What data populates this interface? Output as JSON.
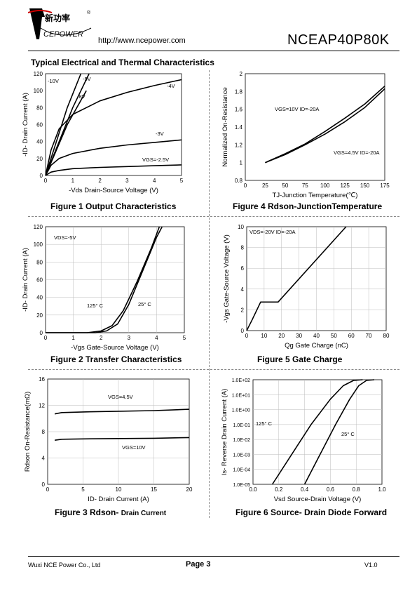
{
  "header": {
    "logo_cn": "新功率",
    "logo_en": "CEPOWER",
    "logo_reg": "®",
    "url": "http://www.ncepower.com",
    "part_number": "NCEAP40P80K"
  },
  "section_title": "Typical Electrical and Thermal Characteristics",
  "chart_data": [
    {
      "id": "fig1",
      "type": "line",
      "caption": "Figure 1 Output Characteristics",
      "xlabel": "-Vds Drain-Source Voltage (V)",
      "ylabel": "-ID- Drain Current (A)",
      "xlim": [
        0,
        5
      ],
      "ylim": [
        0,
        120
      ],
      "xticks": [
        "0",
        "1",
        "2",
        "3",
        "4",
        "5"
      ],
      "yticks": [
        "0",
        "20",
        "40",
        "60",
        "80",
        "100",
        "120"
      ],
      "grid": false,
      "series": [
        {
          "name": "-10V",
          "x": [
            0,
            0.8,
            1.3
          ],
          "y": [
            0,
            80,
            120
          ]
        },
        {
          "name": "-5V",
          "x": [
            0,
            1.0,
            1.6
          ],
          "y": [
            0,
            80,
            120
          ]
        },
        {
          "name": "-8V",
          "x": [
            0,
            0.8,
            1.5
          ],
          "y": [
            0,
            60,
            100
          ]
        },
        {
          "name": "-4V",
          "x": [
            0,
            0.2,
            0.5,
            1,
            2,
            3,
            4,
            5
          ],
          "y": [
            0,
            30,
            55,
            72,
            88,
            98,
            106,
            113
          ]
        },
        {
          "name": "-3V",
          "x": [
            0,
            0.2,
            0.5,
            1,
            2,
            3,
            4,
            5
          ],
          "y": [
            0,
            12,
            20,
            26,
            32,
            36,
            39,
            42
          ]
        },
        {
          "name": "VGS=-2.5V",
          "x": [
            0,
            0.2,
            0.5,
            1,
            2,
            3,
            4,
            5
          ],
          "y": [
            0,
            4,
            6,
            8,
            9.5,
            10.5,
            11.5,
            12.5
          ]
        }
      ],
      "labels": [
        "-10V",
        "-5V",
        "-8V",
        "-4V",
        "-3V",
        "VGS=-2.5V"
      ]
    },
    {
      "id": "fig2",
      "type": "line",
      "caption": "Figure 2 Transfer Characteristics",
      "xlabel": "-Vgs Gate-Source Voltage (V)",
      "ylabel": "-ID- Drain Current (A)",
      "xlim": [
        0,
        5
      ],
      "ylim": [
        0,
        120
      ],
      "xticks": [
        "0",
        "1",
        "2",
        "3",
        "4",
        "5"
      ],
      "yticks": [
        "0",
        "20",
        "40",
        "60",
        "80",
        "100",
        "120"
      ],
      "grid": true,
      "annotation": "VDS=-5V",
      "series": [
        {
          "name": "125° C",
          "x": [
            0,
            1.5,
            2.0,
            2.4,
            2.8,
            3.3,
            3.8,
            4.1
          ],
          "y": [
            0,
            0,
            2,
            8,
            25,
            58,
            95,
            120
          ]
        },
        {
          "name": "25° C",
          "x": [
            0,
            1.8,
            2.2,
            2.6,
            3.0,
            3.5,
            4.0,
            4.2
          ],
          "y": [
            0,
            0,
            2,
            10,
            32,
            70,
            108,
            120
          ]
        }
      ]
    },
    {
      "id": "fig3",
      "type": "line",
      "caption": "Figure 3 Rdson-",
      "caption_small": "Drain Current",
      "xlabel": "ID- Drain Current (A)",
      "ylabel": "Rdson On-Resistance(mΩ)",
      "xlim": [
        0,
        20
      ],
      "ylim": [
        0,
        16
      ],
      "xticks": [
        "0",
        "5",
        "10",
        "15",
        "20"
      ],
      "yticks": [
        "0",
        "4",
        "8",
        "12",
        "16"
      ],
      "grid": true,
      "series": [
        {
          "name": "VGS=4.5V",
          "x": [
            1,
            2,
            5,
            10,
            15,
            20
          ],
          "y": [
            10.7,
            10.9,
            11.0,
            11.1,
            11.2,
            11.4
          ]
        },
        {
          "name": "VGS=10V",
          "x": [
            1,
            2,
            5,
            10,
            15,
            20
          ],
          "y": [
            6.7,
            6.85,
            6.9,
            6.95,
            7.0,
            7.1
          ]
        }
      ]
    },
    {
      "id": "fig4",
      "type": "line",
      "caption": "Figure 4 Rdson-JunctionTemperature",
      "xlabel": "TJ-Junction Temperature(℃)",
      "ylabel": "Normalized On-Resistance",
      "xlim": [
        0,
        175
      ],
      "ylim": [
        0.8,
        2
      ],
      "xticks": [
        "0",
        "25",
        "50",
        "75",
        "100",
        "125",
        "150",
        "175"
      ],
      "yticks": [
        "0.8",
        "1",
        "1.2",
        "1.4",
        "1.6",
        "1.8",
        "2"
      ],
      "grid": false,
      "annotations": [
        "VGS=10V ID=-20A",
        "VGS=4.5V ID=-20A"
      ],
      "series": [
        {
          "name": "VGS=10V",
          "x": [
            25,
            50,
            75,
            100,
            125,
            150,
            175
          ],
          "y": [
            1.0,
            1.1,
            1.21,
            1.35,
            1.5,
            1.66,
            1.86
          ]
        },
        {
          "name": "VGS=4.5V",
          "x": [
            25,
            50,
            75,
            100,
            125,
            150,
            175
          ],
          "y": [
            1.0,
            1.09,
            1.2,
            1.32,
            1.46,
            1.62,
            1.83
          ]
        }
      ]
    },
    {
      "id": "fig5",
      "type": "line",
      "caption": "Figure 5 Gate Charge",
      "xlabel": "Qg Gate Charge (nC)",
      "ylabel": "-Vgs Gate-Source Voltage (V)",
      "xlim": [
        0,
        80
      ],
      "ylim": [
        0,
        10
      ],
      "xticks": [
        "0",
        "10",
        "20",
        "30",
        "40",
        "50",
        "60",
        "70",
        "80"
      ],
      "yticks": [
        "0",
        "2",
        "4",
        "6",
        "8",
        "10"
      ],
      "grid": true,
      "annotation": "VDS=-20V ID=-20A",
      "series": [
        {
          "name": "Vgs",
          "x": [
            0,
            3,
            8,
            18,
            57
          ],
          "y": [
            0,
            1.0,
            2.75,
            2.75,
            10
          ]
        }
      ]
    },
    {
      "id": "fig6",
      "type": "line",
      "caption": "Figure 6 Source- Drain Diode Forward",
      "xlabel": "Vsd Source-Drain Voltage (V)",
      "ylabel": "Is- Reverse Drain Current (A)",
      "xlim": [
        0,
        1.0
      ],
      "ylog": true,
      "ylim": [
        1e-05,
        100
      ],
      "xticks": [
        "0.0",
        "0.2",
        "0.4",
        "0.6",
        "0.8",
        "1.0"
      ],
      "yticks": [
        "1.0E-05",
        "1.0E-04",
        "1.0E-03",
        "1.0E-02",
        "1.0E-01",
        "1.0E+00",
        "1.0E+01",
        "1.0E+02"
      ],
      "grid": true,
      "series": [
        {
          "name": "125° C",
          "x": [
            0.15,
            0.3,
            0.45,
            0.6,
            0.7,
            0.78,
            0.85
          ],
          "y": [
            1e-05,
            0.001,
            0.1,
            5,
            40,
            90,
            100
          ]
        },
        {
          "name": "25° C",
          "x": [
            0.4,
            0.52,
            0.64,
            0.75,
            0.82,
            0.88,
            0.94
          ],
          "y": [
            1e-05,
            0.001,
            0.1,
            5,
            40,
            90,
            100
          ]
        }
      ]
    }
  ],
  "footer": {
    "company": "Wuxi NCE Power Co., Ltd",
    "page": "Page 3",
    "version": "V1.0"
  }
}
